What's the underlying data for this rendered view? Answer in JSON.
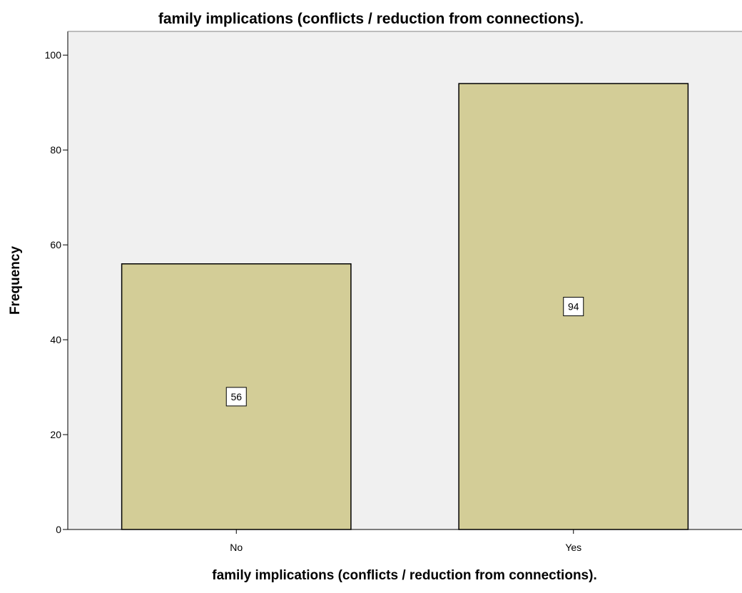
{
  "chart_data": {
    "type": "bar",
    "title": "family implications (conflicts / reduction from connections).",
    "xlabel": "family implications (conflicts / reduction from connections).",
    "ylabel": "Frequency",
    "categories": [
      "No",
      "Yes"
    ],
    "values": [
      56,
      94
    ],
    "data_labels": [
      "56",
      "94"
    ],
    "ylim": [
      0,
      105
    ],
    "yticks": [
      0,
      20,
      40,
      60,
      80,
      100
    ],
    "ytick_labels": [
      "0",
      "20",
      "40",
      "60",
      "80",
      "100"
    ],
    "grid": false,
    "legend": "none",
    "colors": {
      "bar_fill": "#d3cd97",
      "bar_stroke": "#000000",
      "plot_background": "#f0f0f0",
      "page_background": "#ffffff"
    }
  }
}
